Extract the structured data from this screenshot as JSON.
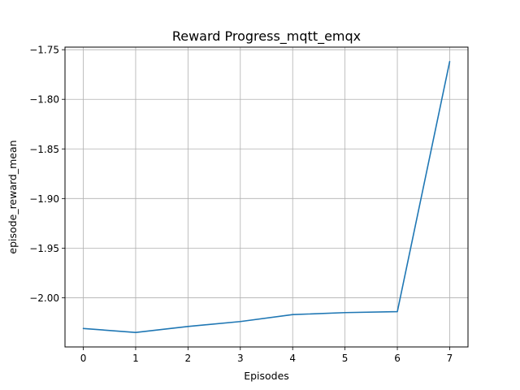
{
  "chart_data": {
    "type": "line",
    "title": "Reward Progress_mqtt_emqx",
    "xlabel": "Episodes",
    "ylabel": "episode_reward_mean",
    "x": [
      0,
      1,
      2,
      3,
      4,
      5,
      6,
      7
    ],
    "series": [
      {
        "values": [
          -2.031,
          -2.035,
          -2.029,
          -2.024,
          -2.017,
          -2.015,
          -2.014,
          -1.762
        ],
        "color": "#1f77b4"
      }
    ],
    "xticks": [
      0,
      1,
      2,
      3,
      4,
      5,
      6,
      7
    ],
    "xtick_labels": [
      "0",
      "1",
      "2",
      "3",
      "4",
      "5",
      "6",
      "7"
    ],
    "yticks": [
      -2.0,
      -1.95,
      -1.9,
      -1.85,
      -1.8,
      -1.75
    ],
    "ytick_labels": [
      "−2.00",
      "−1.95",
      "−1.90",
      "−1.85",
      "−1.80",
      "−1.75"
    ],
    "xlim": [
      -0.35,
      7.35
    ],
    "ylim": [
      -2.0496,
      -1.7474
    ],
    "grid": true,
    "grid_color": "#b0b0b0"
  }
}
